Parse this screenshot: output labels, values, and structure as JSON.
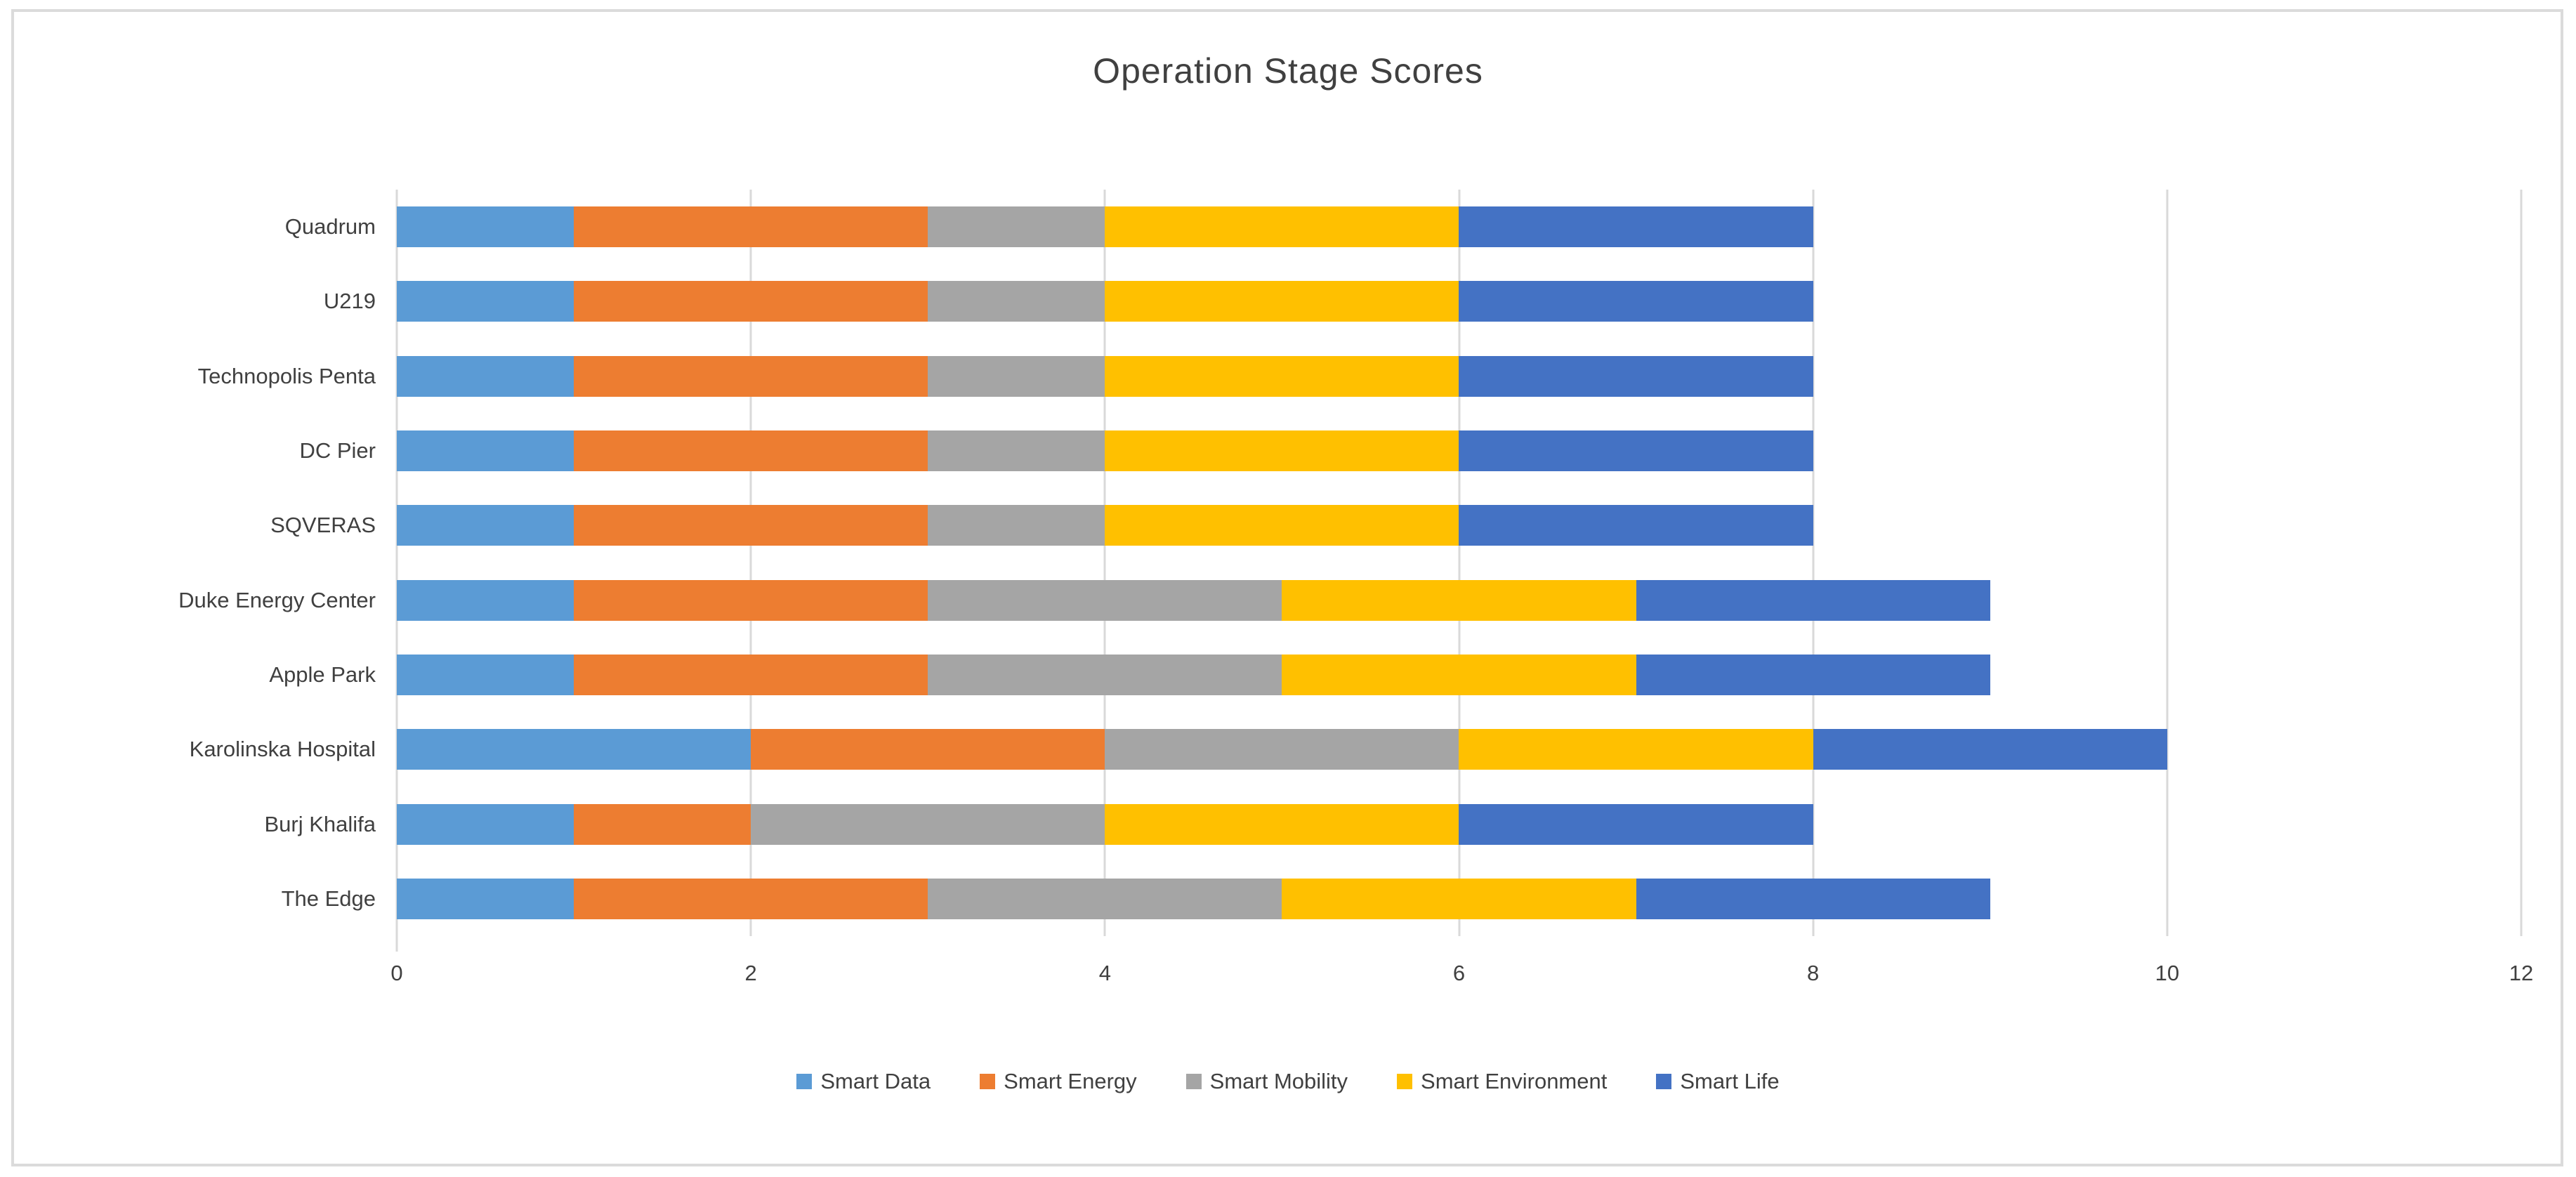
{
  "chart_data": {
    "type": "bar",
    "orientation": "horizontal",
    "stacked": true,
    "title": "Operation Stage Scores",
    "categories": [
      "Quadrum",
      "U219",
      "Technopolis Penta",
      "DC Pier",
      "SQVERAS",
      "Duke Energy Center",
      "Apple Park",
      "Karolinska Hospital",
      "Burj Khalifa",
      "The Edge"
    ],
    "series": [
      {
        "name": "Smart Data",
        "color": "#5B9BD5",
        "values": [
          1,
          1,
          1,
          1,
          1,
          1,
          1,
          2,
          1,
          1
        ]
      },
      {
        "name": "Smart Energy",
        "color": "#ED7D31",
        "values": [
          2,
          2,
          2,
          2,
          2,
          2,
          2,
          2,
          1,
          2
        ]
      },
      {
        "name": "Smart Mobility",
        "color": "#A5A5A5",
        "values": [
          1,
          1,
          1,
          1,
          1,
          2,
          2,
          2,
          2,
          2
        ]
      },
      {
        "name": "Smart Environment",
        "color": "#FFC000",
        "values": [
          2,
          2,
          2,
          2,
          2,
          2,
          2,
          2,
          2,
          2
        ]
      },
      {
        "name": "Smart Life",
        "color": "#4472C4",
        "values": [
          2,
          2,
          2,
          2,
          2,
          2,
          2,
          2,
          2,
          2
        ]
      }
    ],
    "xlim": [
      0,
      12
    ],
    "x_ticks": [
      0,
      2,
      4,
      6,
      8,
      10,
      12
    ],
    "grid": "vertical-gridlines",
    "legend_position": "bottom"
  },
  "style": {
    "grid_color": "#D9D9D9",
    "border_color": "#DBDBDB",
    "text_color": "#404040",
    "background": "#FFFFFF"
  }
}
